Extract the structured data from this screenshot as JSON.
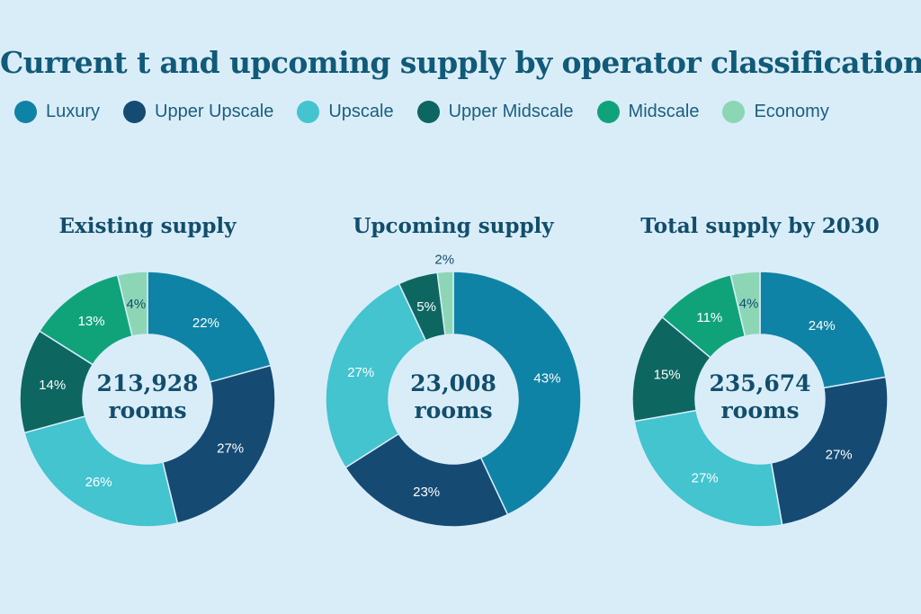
{
  "title": "Current t and upcoming supply by operator classification",
  "colors": {
    "background": "#d9edf9",
    "Luxury": "#0f83a6",
    "Upper Upscale": "#154a73",
    "Upscale": "#43c4cf",
    "Upper Midscale": "#0e6661",
    "Midscale": "#10a37a",
    "Economy": "#8cd6b6"
  },
  "legend": [
    "Luxury",
    "Upper Upscale",
    "Upscale",
    "Upper Midscale",
    "Midscale",
    "Economy"
  ],
  "chart_data": [
    {
      "type": "pie",
      "title": "Existing supply",
      "center_line1": "213,928",
      "center_line2": "rooms",
      "categories": [
        "Luxury",
        "Upper Upscale",
        "Upscale",
        "Upper Midscale",
        "Midscale",
        "Economy"
      ],
      "values": [
        22,
        27,
        26,
        14,
        13,
        4
      ],
      "labels": [
        "22%",
        "27%",
        "26%",
        "14%",
        "13%",
        "4%"
      ]
    },
    {
      "type": "pie",
      "title": "Upcoming supply",
      "center_line1": "23,008",
      "center_line2": "rooms",
      "categories": [
        "Luxury",
        "Upper Upscale",
        "Upscale",
        "Upper Midscale",
        "Economy"
      ],
      "values": [
        43,
        23,
        27,
        5,
        2
      ],
      "labels": [
        "43%",
        "23%",
        "27%",
        "5%",
        "2%"
      ]
    },
    {
      "type": "pie",
      "title": "Total supply by 2030",
      "center_line1": "235,674",
      "center_line2": "rooms",
      "categories": [
        "Luxury",
        "Upper Upscale",
        "Upscale",
        "Upper Midscale",
        "Midscale",
        "Economy"
      ],
      "values": [
        24,
        27,
        27,
        15,
        11,
        4
      ],
      "labels": [
        "24%",
        "27%",
        "27%",
        "15%",
        "11%",
        "4%"
      ]
    }
  ]
}
